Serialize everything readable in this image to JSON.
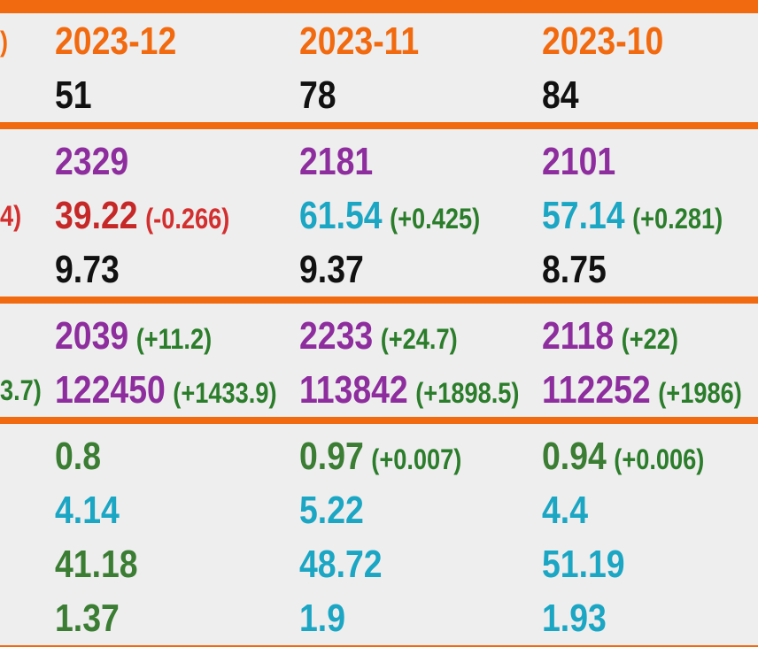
{
  "sections": [
    {
      "rows": [
        {
          "left": {
            "text": ")",
            "color": "#f26a0f"
          },
          "cells": [
            {
              "value": "2023-12",
              "color": "#f26a0f"
            },
            {
              "value": "2023-11",
              "color": "#f26a0f"
            },
            {
              "value": "2023-10",
              "color": "#f26a0f"
            }
          ]
        },
        {
          "cells": [
            {
              "value": "51",
              "color": "#111111"
            },
            {
              "value": "78",
              "color": "#111111"
            },
            {
              "value": "84",
              "color": "#111111"
            }
          ]
        }
      ]
    },
    {
      "rows": [
        {
          "cells": [
            {
              "value": "2329",
              "color": "#8e2d9e"
            },
            {
              "value": "2181",
              "color": "#8e2d9e"
            },
            {
              "value": "2101",
              "color": "#8e2d9e"
            }
          ]
        },
        {
          "left": {
            "text": "4)",
            "color": "#d32f2f"
          },
          "cells": [
            {
              "value": "39.22",
              "color": "#c62828",
              "delta": "(-0.266)",
              "delta_color": "#d32f2f"
            },
            {
              "value": "61.54",
              "color": "#1ba6c4",
              "delta": "(+0.425)",
              "delta_color": "#2b7d2b"
            },
            {
              "value": "57.14",
              "color": "#1ba6c4",
              "delta": "(+0.281)",
              "delta_color": "#2b7d2b"
            }
          ]
        },
        {
          "cells": [
            {
              "value": "9.73",
              "color": "#111111"
            },
            {
              "value": "9.37",
              "color": "#111111"
            },
            {
              "value": "8.75",
              "color": "#111111"
            }
          ]
        }
      ]
    },
    {
      "rows": [
        {
          "cells": [
            {
              "value": "2039",
              "color": "#8e2d9e",
              "delta": "(+11.2)",
              "delta_color": "#2b7d2b"
            },
            {
              "value": "2233",
              "color": "#8e2d9e",
              "delta": "(+24.7)",
              "delta_color": "#2b7d2b"
            },
            {
              "value": "2118",
              "color": "#8e2d9e",
              "delta": "(+22)",
              "delta_color": "#2b7d2b"
            }
          ]
        },
        {
          "left": {
            "text": "3.7)",
            "color": "#2b7d2b"
          },
          "cells": [
            {
              "value": "122450",
              "color": "#8e2d9e",
              "delta": "(+1433.9)",
              "delta_color": "#2b7d2b"
            },
            {
              "value": "113842",
              "color": "#8e2d9e",
              "delta": "(+1898.5)",
              "delta_color": "#2b7d2b"
            },
            {
              "value": "112252",
              "color": "#8e2d9e",
              "delta": "(+1986)",
              "delta_color": "#2b7d2b"
            }
          ]
        }
      ]
    },
    {
      "rows": [
        {
          "cells": [
            {
              "value": "0.8",
              "color": "#3a7d33"
            },
            {
              "value": "0.97",
              "color": "#3a7d33",
              "delta": "(+0.007)",
              "delta_color": "#2b7d2b"
            },
            {
              "value": "0.94",
              "color": "#3a7d33",
              "delta": "(+0.006)",
              "delta_color": "#2b7d2b"
            }
          ]
        },
        {
          "cells": [
            {
              "value": "4.14",
              "color": "#1ba6c4"
            },
            {
              "value": "5.22",
              "color": "#1ba6c4"
            },
            {
              "value": "4.4",
              "color": "#1ba6c4"
            }
          ]
        },
        {
          "cells": [
            {
              "value": "41.18",
              "color": "#3a7d33"
            },
            {
              "value": "48.72",
              "color": "#1ba6c4"
            },
            {
              "value": "51.19",
              "color": "#1ba6c4"
            }
          ]
        },
        {
          "cells": [
            {
              "value": "1.37",
              "color": "#3a7d33"
            },
            {
              "value": "1.9",
              "color": "#1ba6c4"
            },
            {
              "value": "1.93",
              "color": "#1ba6c4"
            }
          ]
        }
      ]
    }
  ]
}
